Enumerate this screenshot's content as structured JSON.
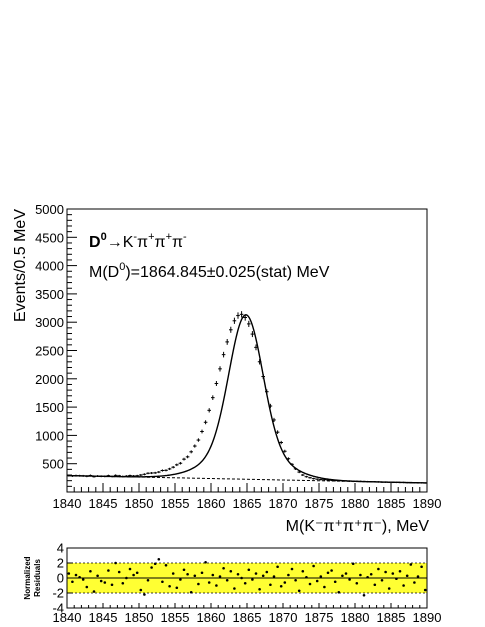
{
  "chart_data": [
    {
      "type": "scatter",
      "panel": "main",
      "ylabel": "Events/0.5 MeV",
      "xlabel": "M(K⁻π⁺π⁺π⁻), MeV",
      "xlim": [
        1840,
        1890
      ],
      "ylim": [
        0,
        5000
      ],
      "xticks": [
        1840,
        1845,
        1850,
        1855,
        1860,
        1865,
        1870,
        1875,
        1880,
        1885,
        1890
      ],
      "yticks": [
        500,
        1000,
        1500,
        2000,
        2500,
        3000,
        3500,
        4000,
        4500,
        5000
      ],
      "annotations": {
        "decay_parts": [
          "D",
          "0",
          "→K",
          "-",
          "π",
          "+",
          "π",
          "+",
          "π",
          "-"
        ],
        "mass_parts": [
          "M(D",
          "0",
          ")=1864.845±0.025(stat) MeV"
        ]
      },
      "grid": false,
      "fit": {
        "model": "signal + linear background",
        "peak_x": 1864.85,
        "peak_y": 3130,
        "sigma_core": 2.3,
        "sigma_wide": 4.8,
        "background": {
          "x": [
            1840,
            1890
          ],
          "y": [
            290,
            160
          ]
        }
      },
      "series": [
        {
          "role": "data",
          "x": [
            1840.25,
            1840.75,
            1841.25,
            1841.75,
            1842.25,
            1842.75,
            1843.25,
            1843.75,
            1844.25,
            1844.75,
            1845.25,
            1845.75,
            1846.25,
            1846.75,
            1847.25,
            1847.75,
            1848.25,
            1848.75,
            1849.25,
            1849.75,
            1850.25,
            1850.75,
            1851.25,
            1851.75,
            1852.25,
            1852.75,
            1853.25,
            1853.75,
            1854.25,
            1854.75,
            1855.25,
            1855.75,
            1856.25,
            1856.75,
            1857.25,
            1857.75,
            1858.25,
            1858.75,
            1859.25,
            1859.75,
            1860.25,
            1860.75,
            1861.25,
            1861.75,
            1862.25,
            1862.75,
            1863.25,
            1863.75,
            1864.25,
            1864.75,
            1865.25,
            1865.75,
            1866.25,
            1866.75,
            1867.25,
            1867.75,
            1868.25,
            1868.75,
            1869.25,
            1869.75,
            1870.25,
            1870.75,
            1871.25,
            1871.75,
            1872.25,
            1872.75,
            1873.25,
            1873.75,
            1874.25,
            1874.75,
            1875.25,
            1875.75,
            1876.25,
            1876.75,
            1877.25,
            1877.75,
            1878.25,
            1878.75,
            1879.25,
            1879.75,
            1880.25,
            1880.75,
            1881.25,
            1881.75,
            1882.25,
            1882.75,
            1883.25,
            1883.75,
            1884.25,
            1884.75,
            1885.25,
            1885.75,
            1886.25,
            1886.75,
            1887.25,
            1887.75,
            1888.25,
            1888.75,
            1889.25,
            1889.75
          ],
          "y": [
            291,
            283,
            289,
            287,
            285,
            278,
            292,
            270,
            282,
            278,
            276,
            289,
            275,
            294,
            286,
            275,
            281,
            291,
            283,
            287,
            300,
            313,
            331,
            335,
            338,
            352,
            380,
            383,
            408,
            438,
            480,
            508,
            580,
            621,
            710,
            812,
            918,
            1069,
            1232,
            1443,
            1667,
            1917,
            2176,
            2427,
            2652,
            2866,
            3025,
            3117,
            3139,
            3083,
            2970,
            2790,
            2556,
            2301,
            2040,
            1772,
            1519,
            1273,
            1057,
            874,
            720,
            588,
            489,
            409,
            352,
            300,
            270,
            252,
            236,
            227,
            219,
            217,
            211,
            207,
            201,
            199,
            197,
            195,
            193,
            189,
            188,
            187,
            185,
            183,
            181,
            180,
            178,
            174,
            174,
            173,
            171,
            170,
            169,
            168,
            165,
            163,
            163,
            161,
            161,
            160
          ]
        }
      ]
    },
    {
      "type": "scatter",
      "panel": "residuals",
      "ylabel": "Normalized Residuals",
      "ylabel_lines": [
        "Normalized",
        "Residuals"
      ],
      "xlim": [
        1840,
        1890
      ],
      "ylim": [
        -4,
        4
      ],
      "xticks": [
        1840,
        1845,
        1850,
        1855,
        1860,
        1865,
        1870,
        1875,
        1880,
        1885,
        1890
      ],
      "yticks": [
        -4,
        -2,
        0,
        2,
        4
      ],
      "band": [
        -2,
        2
      ],
      "band_color": "#ffff33",
      "grid": false,
      "series": [
        {
          "role": "residuals",
          "x": [
            1840.25,
            1840.75,
            1841.25,
            1841.75,
            1842.25,
            1842.75,
            1843.25,
            1843.75,
            1844.25,
            1844.75,
            1845.25,
            1845.75,
            1846.25,
            1846.75,
            1847.25,
            1847.75,
            1848.25,
            1848.75,
            1849.25,
            1849.75,
            1850.25,
            1850.75,
            1851.25,
            1851.75,
            1852.25,
            1852.75,
            1853.25,
            1853.75,
            1854.25,
            1854.75,
            1855.25,
            1855.75,
            1856.25,
            1856.75,
            1857.25,
            1857.75,
            1858.25,
            1858.75,
            1859.25,
            1859.75,
            1860.25,
            1860.75,
            1861.25,
            1861.75,
            1862.25,
            1862.75,
            1863.25,
            1863.75,
            1864.25,
            1864.75,
            1865.25,
            1865.75,
            1866.25,
            1866.75,
            1867.25,
            1867.75,
            1868.25,
            1868.75,
            1869.25,
            1869.75,
            1870.25,
            1870.75,
            1871.25,
            1871.75,
            1872.25,
            1872.75,
            1873.25,
            1873.75,
            1874.25,
            1874.75,
            1875.25,
            1875.75,
            1876.25,
            1876.75,
            1877.25,
            1877.75,
            1878.25,
            1878.75,
            1879.25,
            1879.75,
            1880.25,
            1880.75,
            1881.25,
            1881.75,
            1882.25,
            1882.75,
            1883.25,
            1883.75,
            1884.25,
            1884.75,
            1885.25,
            1885.75,
            1886.25,
            1886.75,
            1887.25,
            1887.75,
            1888.25,
            1888.75,
            1889.25,
            1889.75
          ],
          "y": [
            0.6,
            -0.5,
            0.4,
            0.1,
            -0.2,
            -1.2,
            0.9,
            -1.8,
            0.3,
            -0.4,
            -0.6,
            1.0,
            -0.9,
            2.0,
            0.8,
            -0.7,
            0.0,
            1.2,
            0.4,
            0.7,
            -1.6,
            -2.2,
            -0.3,
            1.4,
            1.9,
            2.5,
            -0.5,
            1.7,
            -1.1,
            0.6,
            -1.3,
            -0.2,
            1.1,
            0.5,
            -1.9,
            0.3,
            -0.8,
            0.7,
            2.1,
            -0.6,
            0.4,
            -1.0,
            0.2,
            1.3,
            -0.3,
            0.9,
            -1.4,
            0.5,
            0.0,
            -0.7,
            1.1,
            -0.2,
            0.6,
            -1.5,
            0.3,
            0.8,
            -0.9,
            0.2,
            1.5,
            -1.1,
            -0.6,
            0.4,
            1.2,
            -0.3,
            -1.7,
            0.9,
            0.1,
            -0.8,
            1.6,
            -0.4,
            0.2,
            -1.2,
            0.7,
            1.0,
            -0.5,
            -1.9,
            0.3,
            0.6,
            -0.2,
            1.9,
            -0.7,
            0.4,
            -2.3,
            0.1,
            0.5,
            -0.9,
            1.2,
            -0.3,
            0.8,
            -1.4,
            0.6,
            -0.1,
            0.9,
            -1.0,
            0.3,
            1.8,
            -0.6,
            0.2,
            1.5,
            -1.6
          ]
        }
      ]
    }
  ],
  "colors": {
    "axis": "#000000",
    "data": "#000000",
    "fit": "#000000",
    "background_line": "#000000",
    "residual_band": "#ffff33",
    "page": "#ffffff"
  }
}
